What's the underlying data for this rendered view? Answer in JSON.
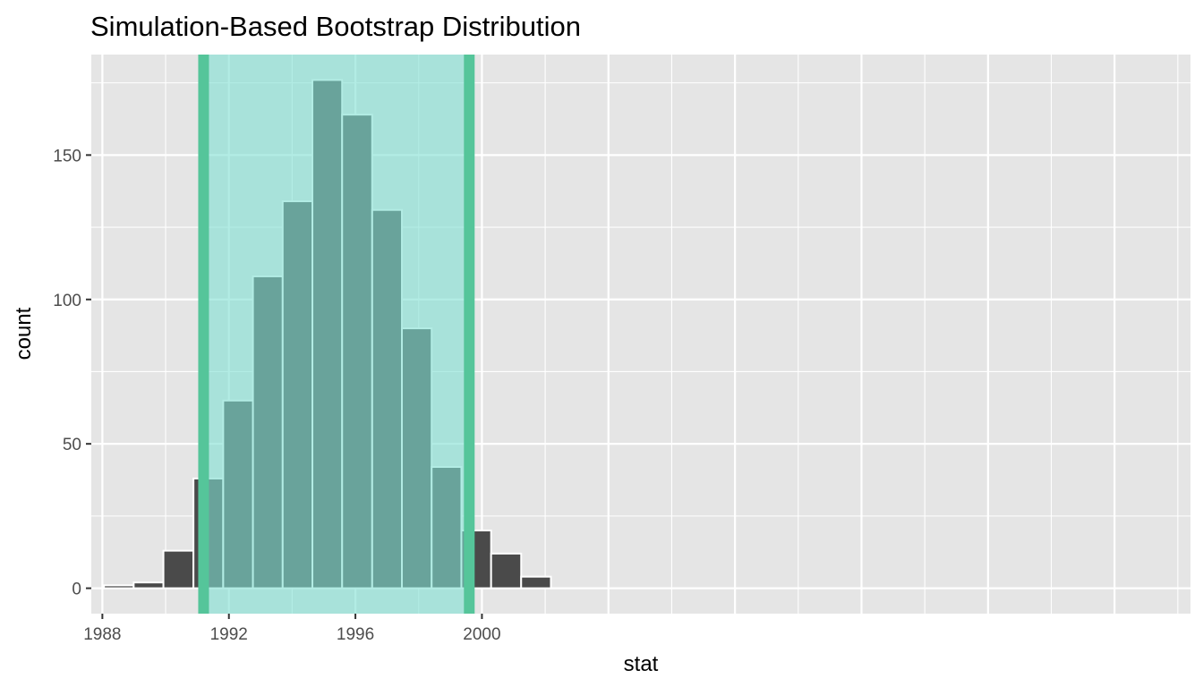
{
  "chart_data": {
    "type": "bar",
    "title": "Simulation-Based Bootstrap Distribution",
    "xlabel": "stat",
    "ylabel": "count",
    "xlim": [
      1987.65,
      2022.4
    ],
    "ylim": [
      -8.8,
      184.8
    ],
    "x_ticks": [
      1988,
      1992,
      1996,
      2000
    ],
    "x_tick_labels": [
      "1988",
      "1992",
      "1996",
      "2000"
    ],
    "y_ticks": [
      0,
      50,
      100,
      150
    ],
    "y_tick_labels": [
      "0",
      "50",
      "100",
      "150"
    ],
    "grid": true,
    "bins": {
      "edges": [
        1988.05,
        1988.99,
        1989.93,
        1990.88,
        1991.82,
        1992.76,
        1993.7,
        1994.64,
        1995.58,
        1996.53,
        1997.47,
        1998.41,
        1999.35,
        2000.29,
        2001.24,
        2002.18
      ],
      "counts": [
        1,
        2,
        13,
        38,
        65,
        108,
        134,
        176,
        164,
        131,
        90,
        42,
        20,
        12,
        4
      ]
    },
    "confidence_interval": {
      "lower": 1991.2,
      "upper": 1999.6
    },
    "colors": {
      "panel_background": "#e5e5e5",
      "grid_line": "#ffffff",
      "bar_fill": "#4a4a4a",
      "bar_outline": "#ffffff",
      "ci_shade": "#7fdfd2",
      "ci_line": "#55c59a",
      "ci_bar_outline": "#b2f0e4"
    }
  }
}
